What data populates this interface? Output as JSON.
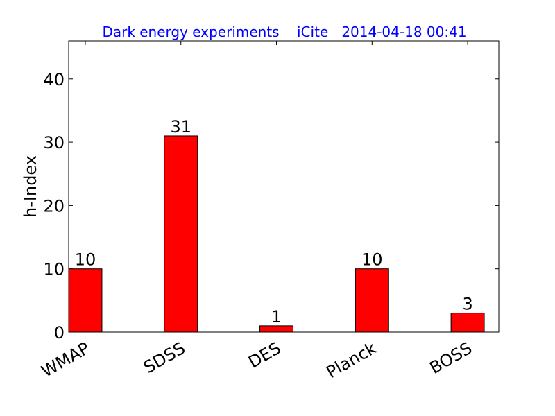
{
  "chart_data": {
    "type": "bar",
    "title": "Dark energy experiments    iCite   2014-04-18 00:41",
    "y_label": "h-Index",
    "categories": [
      "WMAP",
      "SDSS",
      "DES",
      "Planck",
      "BOSS"
    ],
    "values": [
      10,
      31,
      1,
      10,
      3
    ],
    "color": "#ff0000",
    "ylim": [
      0,
      46
    ],
    "yticks": [
      0,
      10,
      20,
      30,
      40
    ],
    "grid": false
  }
}
